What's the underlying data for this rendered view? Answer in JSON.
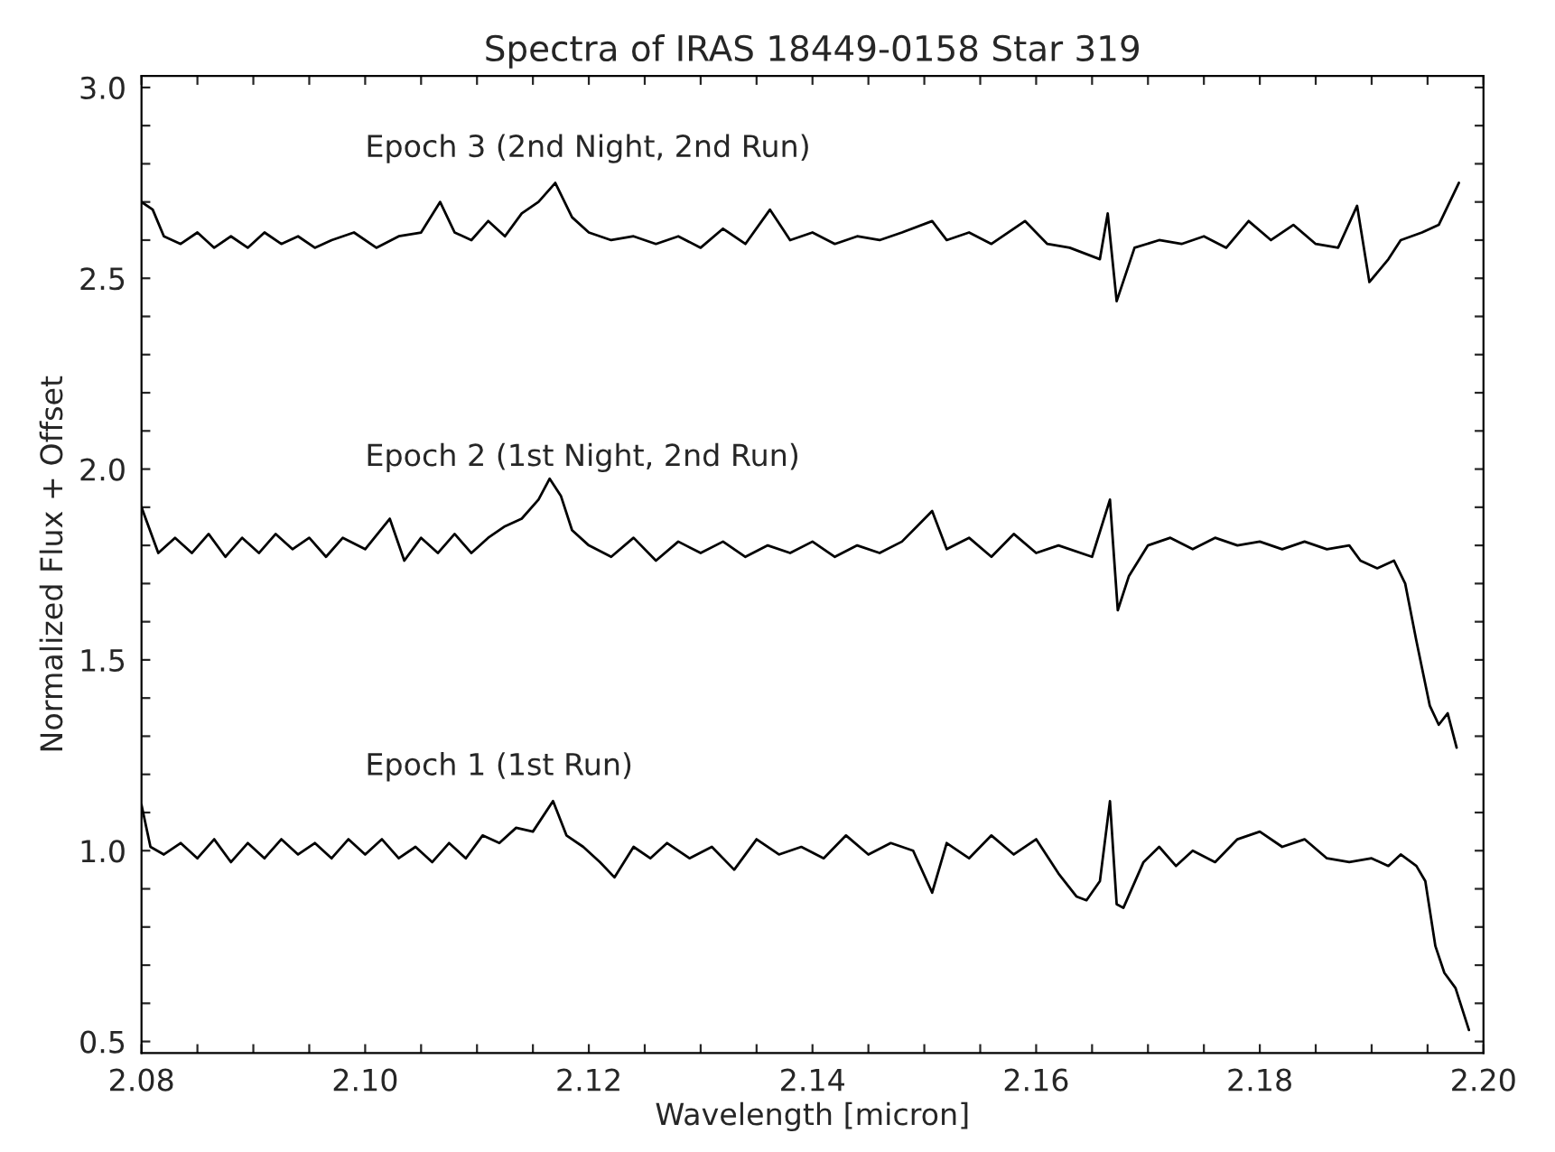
{
  "chart_data": {
    "type": "line",
    "title": "Spectra of IRAS 18449-0158 Star 319",
    "xlabel": "Wavelength [micron]",
    "ylabel": "Normalized Flux + Offset",
    "xlim": [
      2.08,
      2.2
    ],
    "ylim": [
      0.47,
      3.03
    ],
    "xticks": [
      {
        "value": 2.08,
        "label": "2.08"
      },
      {
        "value": 2.085,
        "label": null
      },
      {
        "value": 2.09,
        "label": null
      },
      {
        "value": 2.095,
        "label": null
      },
      {
        "value": 2.1,
        "label": "2.10"
      },
      {
        "value": 2.105,
        "label": null
      },
      {
        "value": 2.11,
        "label": null
      },
      {
        "value": 2.115,
        "label": null
      },
      {
        "value": 2.12,
        "label": "2.12"
      },
      {
        "value": 2.125,
        "label": null
      },
      {
        "value": 2.13,
        "label": null
      },
      {
        "value": 2.135,
        "label": null
      },
      {
        "value": 2.14,
        "label": "2.14"
      },
      {
        "value": 2.145,
        "label": null
      },
      {
        "value": 2.15,
        "label": null
      },
      {
        "value": 2.155,
        "label": null
      },
      {
        "value": 2.16,
        "label": "2.16"
      },
      {
        "value": 2.165,
        "label": null
      },
      {
        "value": 2.17,
        "label": null
      },
      {
        "value": 2.175,
        "label": null
      },
      {
        "value": 2.18,
        "label": "2.18"
      },
      {
        "value": 2.185,
        "label": null
      },
      {
        "value": 2.19,
        "label": null
      },
      {
        "value": 2.195,
        "label": null
      },
      {
        "value": 2.2,
        "label": "2.20"
      }
    ],
    "yticks": [
      {
        "value": 0.5,
        "label": "0.5"
      },
      {
        "value": 0.6,
        "label": null
      },
      {
        "value": 0.7,
        "label": null
      },
      {
        "value": 0.8,
        "label": null
      },
      {
        "value": 0.9,
        "label": null
      },
      {
        "value": 1.0,
        "label": "1.0"
      },
      {
        "value": 1.1,
        "label": null
      },
      {
        "value": 1.2,
        "label": null
      },
      {
        "value": 1.3,
        "label": null
      },
      {
        "value": 1.4,
        "label": null
      },
      {
        "value": 1.5,
        "label": "1.5"
      },
      {
        "value": 1.6,
        "label": null
      },
      {
        "value": 1.7,
        "label": null
      },
      {
        "value": 1.8,
        "label": null
      },
      {
        "value": 1.9,
        "label": null
      },
      {
        "value": 2.0,
        "label": "2.0"
      },
      {
        "value": 2.1,
        "label": null
      },
      {
        "value": 2.2,
        "label": null
      },
      {
        "value": 2.3,
        "label": null
      },
      {
        "value": 2.4,
        "label": null
      },
      {
        "value": 2.5,
        "label": "2.5"
      },
      {
        "value": 2.6,
        "label": null
      },
      {
        "value": 2.7,
        "label": null
      },
      {
        "value": 2.8,
        "label": null
      },
      {
        "value": 2.9,
        "label": null
      },
      {
        "value": 3.0,
        "label": "3.0"
      }
    ],
    "grid": false,
    "legend": false,
    "marker": "none",
    "line_style": "solid",
    "series": [
      {
        "name": "Epoch 1 (1st Run)",
        "color": "#000000",
        "x": [
          2.08,
          2.0808,
          2.082,
          2.0835,
          2.085,
          2.0865,
          2.088,
          2.0895,
          2.091,
          2.0925,
          2.094,
          2.0955,
          2.097,
          2.0985,
          2.1,
          2.1015,
          2.103,
          2.1045,
          2.106,
          2.1075,
          2.109,
          2.1105,
          2.112,
          2.1135,
          2.115,
          2.1168,
          2.118,
          2.1195,
          2.121,
          2.1223,
          2.124,
          2.1255,
          2.127,
          2.129,
          2.131,
          2.133,
          2.135,
          2.137,
          2.139,
          2.141,
          2.143,
          2.145,
          2.147,
          2.149,
          2.1507,
          2.152,
          2.154,
          2.156,
          2.158,
          2.16,
          2.162,
          2.1636,
          2.1645,
          2.1657,
          2.1666,
          2.1672,
          2.1678,
          2.1696,
          2.171,
          2.1725,
          2.174,
          2.176,
          2.178,
          2.18,
          2.182,
          2.184,
          2.186,
          2.188,
          2.19,
          2.1915,
          2.1926,
          2.194,
          2.1948,
          2.1957,
          2.1965,
          2.1975,
          2.1987
        ],
        "values": [
          1.12,
          1.01,
          0.99,
          1.02,
          0.98,
          1.03,
          0.97,
          1.02,
          0.98,
          1.03,
          0.99,
          1.02,
          0.98,
          1.03,
          0.99,
          1.03,
          0.98,
          1.01,
          0.97,
          1.02,
          0.98,
          1.04,
          1.02,
          1.06,
          1.05,
          1.13,
          1.04,
          1.01,
          0.97,
          0.93,
          1.01,
          0.98,
          1.02,
          0.98,
          1.01,
          0.95,
          1.03,
          0.99,
          1.01,
          0.98,
          1.04,
          0.99,
          1.02,
          1.0,
          0.89,
          1.02,
          0.98,
          1.04,
          0.99,
          1.03,
          0.94,
          0.88,
          0.87,
          0.92,
          1.13,
          0.86,
          0.85,
          0.97,
          1.01,
          0.96,
          1.0,
          0.97,
          1.03,
          1.05,
          1.01,
          1.03,
          0.98,
          0.97,
          0.98,
          0.96,
          0.99,
          0.96,
          0.92,
          0.75,
          0.68,
          0.64,
          0.53
        ]
      },
      {
        "name": "Epoch 2 (1st Night, 2nd Run)",
        "color": "#000000",
        "x": [
          2.08,
          2.0815,
          2.083,
          2.0845,
          2.086,
          2.0875,
          2.089,
          2.0905,
          2.092,
          2.0935,
          2.095,
          2.0965,
          2.098,
          2.1,
          2.1022,
          2.1035,
          2.105,
          2.1065,
          2.108,
          2.1095,
          2.111,
          2.1125,
          2.114,
          2.1155,
          2.1165,
          2.1175,
          2.1185,
          2.12,
          2.122,
          2.124,
          2.126,
          2.128,
          2.13,
          2.132,
          2.134,
          2.136,
          2.138,
          2.14,
          2.142,
          2.144,
          2.146,
          2.148,
          2.1507,
          2.152,
          2.154,
          2.156,
          2.158,
          2.16,
          2.162,
          2.165,
          2.1666,
          2.1673,
          2.1683,
          2.17,
          2.172,
          2.174,
          2.176,
          2.178,
          2.18,
          2.182,
          2.184,
          2.186,
          2.188,
          2.189,
          2.1905,
          2.192,
          2.193,
          2.194,
          2.1952,
          2.196,
          2.1968,
          2.1976
        ],
        "values": [
          1.9,
          1.78,
          1.82,
          1.78,
          1.83,
          1.77,
          1.82,
          1.78,
          1.83,
          1.79,
          1.82,
          1.77,
          1.82,
          1.79,
          1.87,
          1.76,
          1.82,
          1.78,
          1.83,
          1.78,
          1.82,
          1.85,
          1.87,
          1.92,
          1.975,
          1.93,
          1.84,
          1.8,
          1.77,
          1.82,
          1.76,
          1.81,
          1.78,
          1.81,
          1.77,
          1.8,
          1.78,
          1.81,
          1.77,
          1.8,
          1.78,
          1.81,
          1.89,
          1.79,
          1.82,
          1.77,
          1.83,
          1.78,
          1.8,
          1.77,
          1.92,
          1.63,
          1.72,
          1.8,
          1.82,
          1.79,
          1.82,
          1.8,
          1.81,
          1.79,
          1.81,
          1.79,
          1.8,
          1.76,
          1.74,
          1.76,
          1.7,
          1.55,
          1.38,
          1.33,
          1.36,
          1.27
        ]
      },
      {
        "name": "Epoch 3 (2nd Night, 2nd Run)",
        "color": "#000000",
        "x": [
          2.08,
          2.081,
          2.082,
          2.0835,
          2.085,
          2.0865,
          2.088,
          2.0895,
          2.091,
          2.0925,
          2.094,
          2.0955,
          2.097,
          2.099,
          2.101,
          2.103,
          2.105,
          2.1067,
          2.108,
          2.1095,
          2.111,
          2.1125,
          2.114,
          2.1155,
          2.117,
          2.1185,
          2.12,
          2.122,
          2.124,
          2.126,
          2.128,
          2.13,
          2.132,
          2.134,
          2.1362,
          2.138,
          2.14,
          2.142,
          2.144,
          2.146,
          2.148,
          2.1507,
          2.152,
          2.154,
          2.156,
          2.159,
          2.161,
          2.163,
          2.1657,
          2.1664,
          2.1672,
          2.1688,
          2.171,
          2.173,
          2.175,
          2.177,
          2.179,
          2.181,
          2.183,
          2.185,
          2.187,
          2.1887,
          2.1898,
          2.1915,
          2.1926,
          2.1945,
          2.196,
          2.1978
        ],
        "values": [
          2.7,
          2.68,
          2.61,
          2.59,
          2.62,
          2.58,
          2.61,
          2.58,
          2.62,
          2.59,
          2.61,
          2.58,
          2.6,
          2.62,
          2.58,
          2.61,
          2.62,
          2.7,
          2.62,
          2.6,
          2.65,
          2.61,
          2.67,
          2.7,
          2.75,
          2.66,
          2.62,
          2.6,
          2.61,
          2.59,
          2.61,
          2.58,
          2.63,
          2.59,
          2.68,
          2.6,
          2.62,
          2.59,
          2.61,
          2.6,
          2.62,
          2.65,
          2.6,
          2.62,
          2.59,
          2.65,
          2.59,
          2.58,
          2.55,
          2.67,
          2.44,
          2.58,
          2.6,
          2.59,
          2.61,
          2.58,
          2.65,
          2.6,
          2.64,
          2.59,
          2.58,
          2.69,
          2.49,
          2.55,
          2.6,
          2.62,
          2.64,
          2.75
        ]
      }
    ]
  }
}
